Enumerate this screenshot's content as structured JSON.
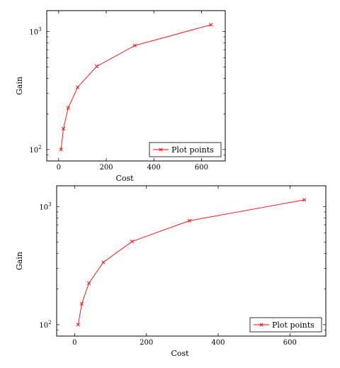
{
  "chart_data": [
    {
      "type": "line",
      "xlabel": "Cost",
      "ylabel": "Gain",
      "yscale": "log",
      "xlim": [
        -50,
        700
      ],
      "ylim": [
        80,
        1500
      ],
      "xticks": [
        0,
        200,
        400,
        600
      ],
      "xtick_labels": [
        "0",
        "200",
        "400",
        "600"
      ],
      "ytick_labels": [
        {
          "value": 100,
          "base": "10",
          "exp": "2"
        },
        {
          "value": 1000,
          "base": "10",
          "exp": "3"
        }
      ],
      "legend_position": "bottom-right",
      "series": [
        {
          "name": "Plot points",
          "color": "#ff0000",
          "marker": "x",
          "x": [
            10,
            20,
            40,
            80,
            160,
            320,
            640
          ],
          "y": [
            100,
            150,
            225,
            337,
            506,
            759,
            1139
          ]
        }
      ]
    },
    {
      "type": "line",
      "xlabel": "Cost",
      "ylabel": "Gain",
      "yscale": "log",
      "xlim": [
        -50,
        700
      ],
      "ylim": [
        80,
        1500
      ],
      "xticks": [
        0,
        200,
        400,
        600
      ],
      "xtick_labels": [
        "0",
        "200",
        "400",
        "600"
      ],
      "ytick_labels": [
        {
          "value": 100,
          "base": "10",
          "exp": "2"
        },
        {
          "value": 1000,
          "base": "10",
          "exp": "3"
        }
      ],
      "legend_position": "bottom-right",
      "series": [
        {
          "name": "Plot points",
          "color": "#ff0000",
          "marker": "x",
          "x": [
            10,
            20,
            40,
            80,
            160,
            320,
            640
          ],
          "y": [
            100,
            150,
            225,
            337,
            506,
            759,
            1139
          ]
        }
      ]
    }
  ]
}
